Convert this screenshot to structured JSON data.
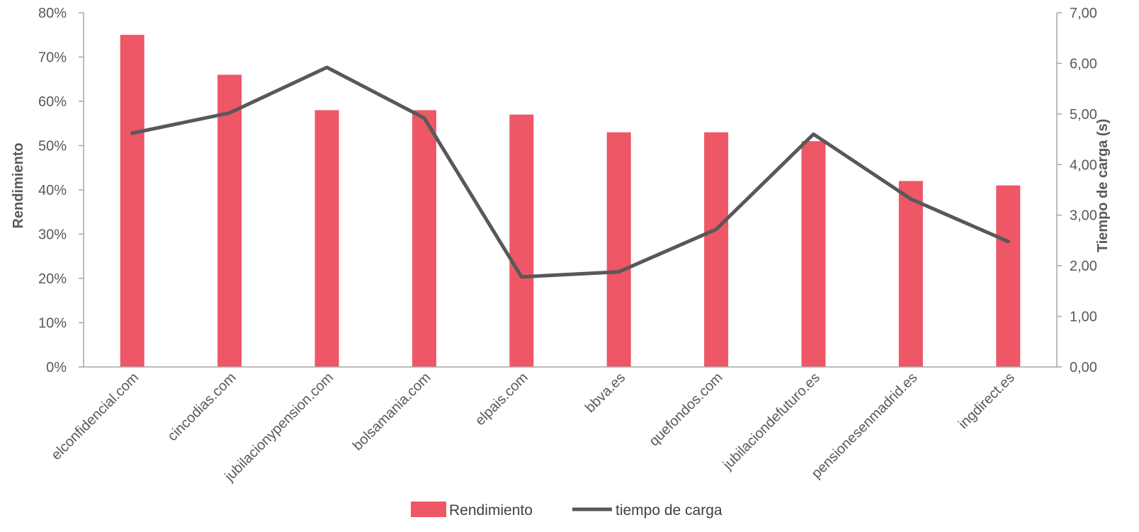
{
  "chart_data": {
    "type": "bar",
    "categories": [
      "elconfidencial.com",
      "cincodias.com",
      "jubilacionypension.com",
      "bolsamania.com",
      "elpais.com",
      "bbva.es",
      "quefondos.com",
      "jubilaciondefuturo.es",
      "pensionesenmadrid.es",
      "ingdirect.es"
    ],
    "series": [
      {
        "name": "Rendimiento",
        "type": "bar",
        "axis": "left",
        "color": "#ee5766",
        "values": [
          75,
          66,
          58,
          58,
          57,
          53,
          53,
          51,
          42,
          41
        ]
      },
      {
        "name": "tiempo de carga",
        "type": "line",
        "axis": "right",
        "color": "#58585a",
        "values": [
          4.62,
          5.02,
          5.92,
          4.92,
          1.78,
          1.88,
          2.72,
          4.6,
          3.32,
          2.48
        ]
      }
    ],
    "ylabel": "Rendimiento",
    "y2label": "Tiempo de carga (s)",
    "ylim": [
      0,
      80
    ],
    "y2lim": [
      0,
      7
    ],
    "yticks": [
      "0%",
      "10%",
      "20%",
      "30%",
      "40%",
      "50%",
      "60%",
      "70%",
      "80%"
    ],
    "y2ticks": [
      "0,00",
      "1,00",
      "2,00",
      "3,00",
      "4,00",
      "5,00",
      "6,00",
      "7,00"
    ],
    "grid": false,
    "legend_position": "bottom"
  }
}
